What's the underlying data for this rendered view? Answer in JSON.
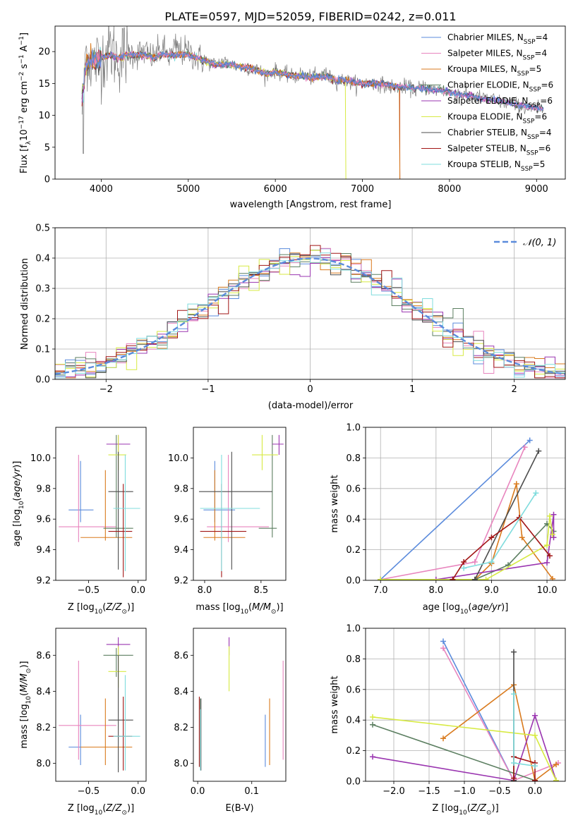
{
  "figure": {
    "title": "PLATE=0597, MJD=52059, FIBERID=0242, z=0.011"
  },
  "colors": {
    "Chabrier MILES": "#5b8bdc",
    "Salpeter MILES": "#e885be",
    "Kroupa MILES": "#d97a1d",
    "Chabrier ELODIE": "#5c7f61",
    "Salpeter ELODIE": "#9a35b0",
    "Kroupa ELODIE": "#d7ea43",
    "Chabrier STELIB": "#4d4d4d",
    "Salpeter STELIB": "#a11515",
    "Kroupa STELIB": "#7fdcdd"
  },
  "chart_data": [
    {
      "id": "spectrum",
      "type": "line",
      "xlabel": "wavelength [Angstrom, rest frame]",
      "ylabel": "Flux [f_λ10^-17 erg cm^-2 s^-1 A^-1]",
      "xlim": [
        3470,
        9330
      ],
      "ylim": [
        0,
        24
      ],
      "xticks": [
        4000,
        5000,
        6000,
        7000,
        8000,
        9000
      ],
      "yticks": [
        0,
        5,
        10,
        15,
        20
      ],
      "legend_position": "top-right",
      "series": [
        {
          "name": "Chabrier MILES",
          "nssp": "4"
        },
        {
          "name": "Salpeter MILES",
          "nssp": "4"
        },
        {
          "name": "Kroupa MILES",
          "nssp": "5"
        },
        {
          "name": "Chabrier ELODIE",
          "nssp": "6"
        },
        {
          "name": "Salpeter ELODIE",
          "nssp": "6"
        },
        {
          "name": "Kroupa ELODIE",
          "nssp": "6"
        },
        {
          "name": "Chabrier STELIB",
          "nssp": "4"
        },
        {
          "name": "Salpeter STELIB",
          "nssp": "6"
        },
        {
          "name": "Kroupa STELIB",
          "nssp": "5"
        }
      ],
      "data_trace": {
        "x": [
          3780,
          3820,
          3900,
          4000,
          4100,
          4200,
          4300,
          4400,
          4500,
          4600,
          4700,
          4800,
          4860,
          4900,
          5000,
          5100,
          5200,
          5300,
          5400,
          5500,
          5600,
          5700,
          5800,
          5890,
          6000,
          6100,
          6200,
          6300,
          6400,
          6500,
          6563,
          6600,
          6700,
          6800,
          6900,
          7000,
          7100,
          7200,
          7300,
          7400,
          7500,
          7600,
          7700,
          7800,
          7900,
          8000,
          8100,
          8200,
          8300,
          8400,
          8500,
          8600,
          8700,
          8800,
          8900,
          9000,
          9080
        ],
        "y": [
          11,
          20,
          18,
          19,
          20.5,
          19,
          20,
          19.5,
          20,
          19,
          20.5,
          19,
          21,
          20,
          20,
          19,
          18.5,
          18,
          18.5,
          18,
          17.5,
          17.5,
          17,
          16.5,
          17,
          16.5,
          16,
          16.5,
          16,
          16,
          17,
          16,
          15.5,
          15.5,
          15,
          15,
          15,
          15,
          14.5,
          14.5,
          14.5,
          14,
          14.5,
          14,
          14,
          13.5,
          13.5,
          13,
          13,
          12.5,
          12.5,
          12,
          12,
          11.5,
          11,
          11,
          11
        ]
      },
      "model_trace": {
        "x": [
          3780,
          3830,
          3900,
          4000,
          4100,
          4200,
          4300,
          4400,
          4500,
          4600,
          4700,
          4800,
          4900,
          5000,
          5100,
          5200,
          5300,
          5400,
          5500,
          5600,
          5700,
          5800,
          5900,
          6000,
          6100,
          6200,
          6300,
          6400,
          6500,
          6600,
          6700,
          6800,
          6900,
          7000,
          7100,
          7200,
          7300,
          7400,
          7500,
          7600,
          7700,
          7800,
          7900,
          8000,
          8100,
          8200,
          8300,
          8400,
          8500,
          8600,
          8700,
          8800,
          8900,
          9000,
          9080
        ],
        "y": [
          13,
          18,
          18.5,
          19,
          19.5,
          19,
          19.5,
          19.5,
          19.5,
          19,
          19.5,
          19.5,
          19.5,
          19.5,
          19,
          18.5,
          18,
          18,
          18,
          17.5,
          17.5,
          17,
          16.5,
          16.8,
          16.5,
          16.2,
          16.2,
          16,
          16,
          16,
          15.5,
          15.5,
          15.2,
          15,
          15,
          15,
          14.7,
          14.5,
          14.5,
          14.2,
          14.2,
          14,
          14,
          13.6,
          13.4,
          13.1,
          12.9,
          12.6,
          12.4,
          12.1,
          11.9,
          11.6,
          11.4,
          11.1,
          11
        ]
      }
    },
    {
      "id": "residuals",
      "type": "line",
      "xlabel": "(data-model)/error",
      "ylabel": "Normed distribution",
      "xlim": [
        -2.5,
        2.5
      ],
      "ylim": [
        0,
        0.5
      ],
      "xticks": [
        -2,
        -1,
        0,
        1,
        2
      ],
      "yticks": [
        0.0,
        0.1,
        0.2,
        0.3,
        0.4,
        0.5
      ],
      "grid": true,
      "legend_position": "top-right",
      "legend_label": "𝒩(0, 1)",
      "reference_curve": "standard normal N(0,1), dashed",
      "bin_width": 0.1,
      "bins_left": -2.5
    },
    {
      "id": "age_vs_Z",
      "type": "scatter",
      "xlabel": "Z [log10(Z/Z⊙)]",
      "ylabel": "age [log10(age/yr)]",
      "xlim": [
        -0.83,
        0.08
      ],
      "ylim": [
        9.2,
        10.2
      ],
      "xticks": [
        -0.5,
        0.0
      ],
      "yticks": [
        9.2,
        9.4,
        9.6,
        9.8,
        10.0
      ]
    },
    {
      "id": "age_vs_mass",
      "type": "scatter",
      "xlabel": "mass [log10(M/M⊙)]",
      "xlim": [
        7.9,
        8.72
      ],
      "ylim": [
        9.2,
        10.2
      ],
      "xticks": [
        8.0,
        8.5
      ],
      "yticks": [
        9.2,
        9.4,
        9.6,
        9.8,
        10.0
      ]
    },
    {
      "id": "weight_vs_age",
      "type": "line",
      "xlabel": "age [log10(age/yr)]",
      "ylabel": "mass weight",
      "xlim": [
        6.73,
        10.33
      ],
      "ylim": [
        0,
        1.0
      ],
      "xticks": [
        7,
        8,
        9,
        10
      ],
      "yticks": [
        0.0,
        0.2,
        0.4,
        0.6,
        0.8,
        1.0
      ],
      "grid": true
    },
    {
      "id": "mass_vs_Z",
      "type": "scatter",
      "xlabel": "Z [log10(Z/Z⊙)]",
      "ylabel": "mass [log10(M/M⊙)]",
      "xlim": [
        -0.83,
        0.08
      ],
      "ylim": [
        7.9,
        8.75
      ],
      "xticks": [
        -0.5,
        0.0
      ],
      "yticks": [
        8.0,
        8.2,
        8.4,
        8.6
      ]
    },
    {
      "id": "mass_vs_ebv",
      "type": "scatter",
      "xlabel": "E(B-V)",
      "xlim": [
        -0.008,
        0.163
      ],
      "ylim": [
        7.9,
        8.75
      ],
      "xticks": [
        0.0,
        0.1
      ],
      "yticks": [
        8.0,
        8.2,
        8.4,
        8.6
      ]
    },
    {
      "id": "weight_vs_Z",
      "type": "line",
      "xlabel": "Z [log10(Z/Z⊙)]",
      "ylabel": "mass weight",
      "xlim": [
        -2.4,
        0.43
      ],
      "ylim": [
        0,
        1.0
      ],
      "xticks": [
        -2.0,
        -1.5,
        -1.0,
        -0.5,
        0.0
      ],
      "yticks": [
        0.0,
        0.2,
        0.4,
        0.6,
        0.8,
        1.0
      ],
      "grid": true
    }
  ],
  "fits": [
    {
      "name": "Chabrier MILES",
      "Z": -0.58,
      "Zlo": -0.7,
      "Zhi": -0.45,
      "age": 9.66,
      "agelo": 9.58,
      "agehi": 9.98,
      "mass": 8.09,
      "masslo": 7.99,
      "masshi": 8.27,
      "ebv": 0.125,
      "ebvlo": 7.98,
      "ebvhi": 8.27,
      "ssp_age": [
        7.0,
        9.69
      ],
      "ssp_w": [
        0.005,
        0.915
      ],
      "ssp_Z": [
        -1.3,
        -0.3
      ],
      "ssp_Zw": [
        0.915,
        0.005
      ]
    },
    {
      "name": "Salpeter MILES",
      "Z": -0.6,
      "Zlo": -0.8,
      "Zhi": -0.22,
      "age": 9.55,
      "agelo": 9.45,
      "agehi": 10.02,
      "mass": 8.21,
      "masslo": 8.02,
      "masshi": 8.57,
      "ebv": 0.158,
      "ebvlo": 8.02,
      "ebvhi": 8.57,
      "ssp_age": [
        7.0,
        8.7,
        9.6
      ],
      "ssp_w": [
        0.005,
        0.12,
        0.87
      ],
      "ssp_Z": [
        -1.3,
        -0.3,
        0.33
      ],
      "ssp_Zw": [
        0.87,
        0.005,
        0.12
      ]
    },
    {
      "name": "Kroupa MILES",
      "Z": -0.33,
      "Zlo": -0.58,
      "Zhi": -0.06,
      "age": 9.48,
      "agelo": 9.46,
      "agehi": 9.92,
      "mass": 8.09,
      "masslo": 7.99,
      "masshi": 8.36,
      "ebv": 0.133,
      "ebvlo": 7.99,
      "ebvhi": 8.36,
      "ssp_age": [
        8.7,
        9.0,
        9.45,
        9.55,
        10.1
      ],
      "ssp_w": [
        0.005,
        0.11,
        0.63,
        0.28,
        0.01
      ],
      "ssp_Z": [
        -1.3,
        -0.3,
        0.0,
        0.3
      ],
      "ssp_Zw": [
        0.28,
        0.63,
        0.005,
        0.11
      ]
    },
    {
      "name": "Chabrier ELODIE",
      "Z": -0.22,
      "Zlo": -0.35,
      "Zhi": -0.05,
      "age": 9.54,
      "agelo": 9.48,
      "agehi": 10.15,
      "mass": 8.6,
      "masslo": 8.48,
      "masshi": 8.64,
      "ebv": 0.005,
      "ebvlo": 7.98,
      "ebvhi": 8.36,
      "ssp_age": [
        7.0,
        8.7,
        9.3,
        10.0,
        10.12
      ],
      "ssp_w": [
        0.005,
        0.005,
        0.1,
        0.37,
        0.32
      ],
      "ssp_Z": [
        -2.3,
        0.0
      ],
      "ssp_Zw": [
        0.37,
        0.005
      ]
    },
    {
      "name": "Salpeter ELODIE",
      "Z": -0.2,
      "Zlo": -0.32,
      "Zhi": -0.08,
      "age": 10.09,
      "agelo": 10.02,
      "agehi": 10.15,
      "mass": 8.66,
      "masslo": 8.6,
      "masshi": 8.7,
      "ebv": 0.058,
      "ebvlo": 8.6,
      "ebvhi": 8.7,
      "ssp_age": [
        8.0,
        10.0,
        10.12,
        10.12
      ],
      "ssp_w": [
        0.005,
        0.115,
        0.43,
        0.28
      ],
      "ssp_Z": [
        -2.3,
        -0.3,
        0.0,
        0.3
      ],
      "ssp_Zw": [
        0.16,
        0.005,
        0.43,
        0.005
      ]
    },
    {
      "name": "Kroupa ELODIE",
      "Z": -0.2,
      "Zlo": -0.3,
      "Zhi": -0.12,
      "age": 10.02,
      "agelo": 9.92,
      "agehi": 10.15,
      "mass": 8.51,
      "masslo": 8.42,
      "masshi": 8.65,
      "ebv": 0.058,
      "ebvlo": 8.4,
      "ebvhi": 8.65,
      "ssp_age": [
        7.0,
        8.9,
        10.0,
        10.05,
        10.1
      ],
      "ssp_w": [
        0.005,
        0.005,
        0.23,
        0.42,
        0.3
      ],
      "ssp_Z": [
        -2.3,
        0.0,
        0.3
      ],
      "ssp_Zw": [
        0.42,
        0.3,
        0.005
      ]
    },
    {
      "name": "Chabrier STELIB",
      "Z": -0.2,
      "Zlo": -0.3,
      "Zhi": -0.05,
      "age": 9.78,
      "agelo": 9.27,
      "agehi": 10.04,
      "mass": 8.24,
      "masslo": 7.95,
      "masshi": 8.6,
      "ebv": 0.006,
      "ebvlo": 7.96,
      "ebvhi": 8.36,
      "ssp_age": [
        8.7,
        9.85
      ],
      "ssp_w": [
        0.005,
        0.845
      ],
      "ssp_Z": [
        -0.3,
        -0.3
      ],
      "ssp_Zw": [
        0.845,
        0.005
      ]
    },
    {
      "name": "Salpeter STELIB",
      "Z": -0.15,
      "Zlo": -0.3,
      "Zhi": -0.06,
      "age": 9.52,
      "agelo": 9.22,
      "agehi": 9.83,
      "mass": 8.15,
      "masslo": 7.96,
      "masshi": 8.37,
      "ebv": 0.003,
      "ebvlo": 7.98,
      "ebvhi": 8.37,
      "ssp_age": [
        8.3,
        8.5,
        9.0,
        9.5,
        10.05
      ],
      "ssp_w": [
        0.005,
        0.12,
        0.28,
        0.41,
        0.16
      ],
      "ssp_Z": [
        -0.3,
        -0.3,
        0.0,
        0.0
      ],
      "ssp_Zw": [
        0.02,
        0.16,
        0.12,
        0.005
      ]
    },
    {
      "name": "Kroupa STELIB",
      "Z": -0.13,
      "Zlo": -0.25,
      "Zhi": 0.02,
      "age": 9.67,
      "agelo": 9.26,
      "agehi": 10.02,
      "mass": 8.15,
      "masslo": 7.96,
      "masshi": 8.49,
      "ebv": 0.005,
      "ebvlo": 7.96,
      "ebvhi": 8.3,
      "ssp_age": [
        8.5,
        9.0,
        9.8
      ],
      "ssp_w": [
        0.08,
        0.12,
        0.57
      ],
      "ssp_Z": [
        -0.3,
        -0.3,
        0.0
      ],
      "ssp_Zw": [
        0.57,
        0.12,
        0.1
      ]
    }
  ]
}
